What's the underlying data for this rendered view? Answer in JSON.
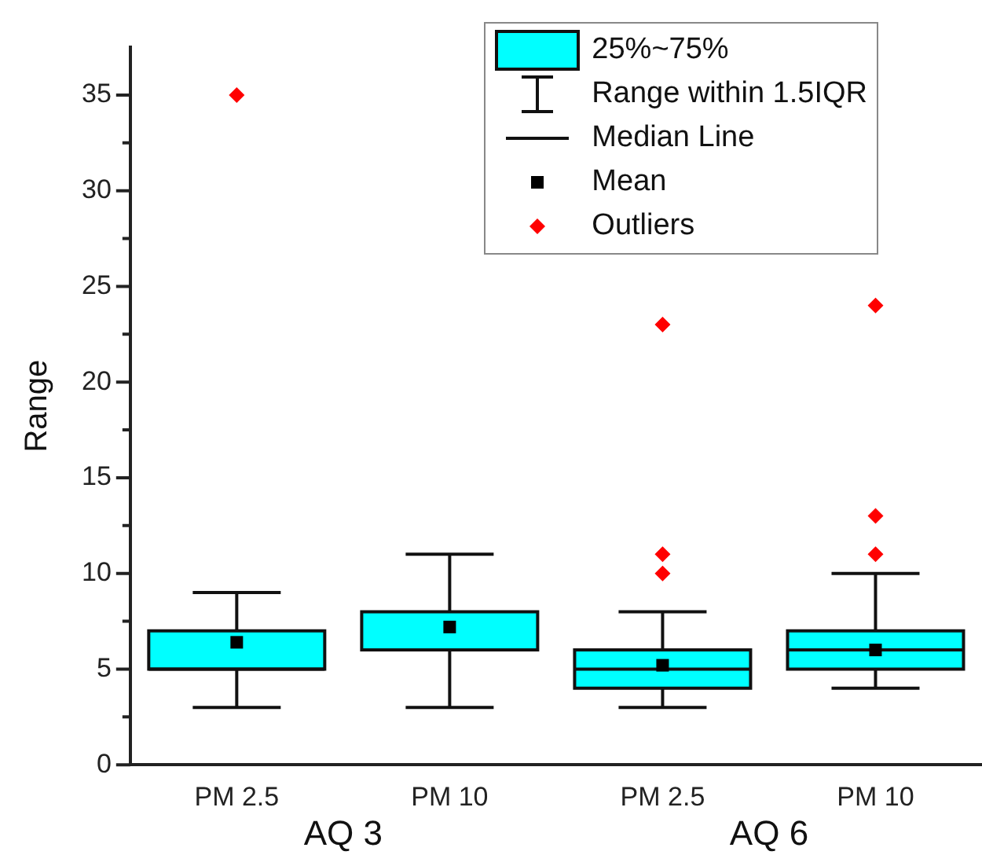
{
  "chart_data": {
    "type": "box",
    "ylabel": "Range",
    "categories": [
      "PM 2.5",
      "PM 10",
      "PM 2.5",
      "PM 10"
    ],
    "series": [
      {
        "name": "25%~75%",
        "color": "#00ffff",
        "boxes": [
          {
            "low": 3,
            "q1": 5,
            "median": 5,
            "q3": 7,
            "high": 9,
            "mean": 6.4,
            "outliers": [
              35
            ]
          },
          {
            "low": 3,
            "q1": 6,
            "median": 6,
            "q3": 8,
            "high": 11,
            "mean": 7.2
          },
          {
            "low": 3,
            "q1": 4,
            "median": 5,
            "q3": 6,
            "high": 8,
            "mean": 5.2,
            "outliers": [
              10,
              11,
              23
            ]
          },
          {
            "low": 4,
            "q1": 5,
            "median": 6,
            "q3": 7,
            "high": 10,
            "mean": 6.0,
            "outliers": [
              11,
              13,
              24
            ]
          }
        ]
      }
    ],
    "ylim": [
      0,
      37.5
    ],
    "yticks": [
      0,
      {
        "value": 2.5,
        "label": null
      },
      5,
      {
        "value": 7.5,
        "label": null
      },
      10,
      {
        "value": 12.5,
        "label": null
      },
      15,
      {
        "value": 17.5,
        "label": null
      },
      20,
      {
        "value": 22.5,
        "label": null
      },
      25,
      {
        "value": 27.5,
        "label": null
      },
      30,
      {
        "value": 32.5,
        "label": null
      },
      35
    ],
    "legend": "top right",
    "annotations": [
      "Range within 1.5IQR",
      "Median Line",
      "Mean",
      "Outliers",
      "AQ 3",
      "AQ 6"
    ]
  }
}
